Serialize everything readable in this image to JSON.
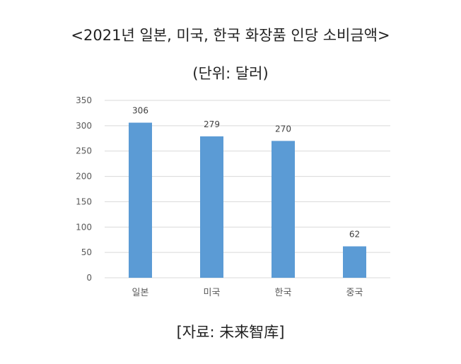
{
  "chart_data": {
    "type": "bar",
    "title": "<2021년 일본, 미국, 한국 화장품 인당 소비금액>",
    "subtitle": "(단위: 달러)",
    "categories": [
      "일본",
      "미국",
      "한국",
      "중국"
    ],
    "series": [
      {
        "values": [
          306,
          279,
          270,
          62
        ]
      }
    ],
    "data_labels": [
      "306",
      "279",
      "270",
      "62"
    ],
    "ylim": [
      0,
      350
    ],
    "yticks": [
      0,
      50,
      100,
      150,
      200,
      250,
      300,
      350
    ],
    "xlabel": "",
    "ylabel": "",
    "grid": true,
    "legend": "none",
    "bar_color": "#5b9bd5",
    "grid_color": "#d9d9d9"
  },
  "source": "[자료: 未来智库]"
}
